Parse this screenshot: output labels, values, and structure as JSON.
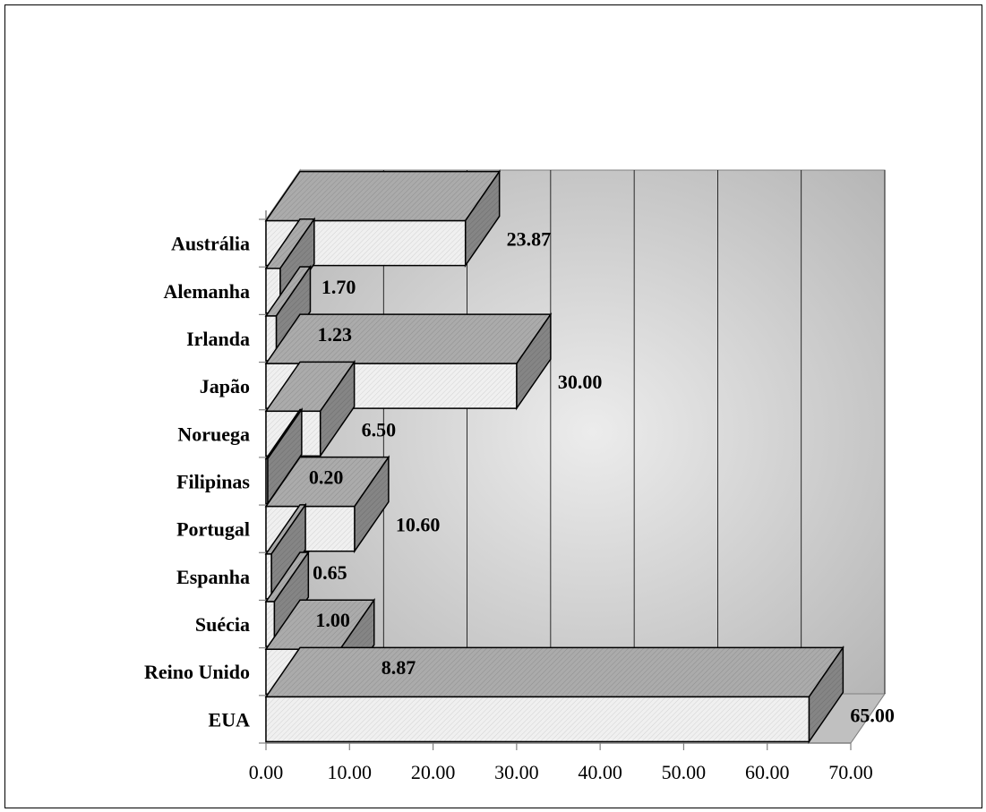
{
  "chart_data": {
    "type": "bar",
    "orientation": "horizontal",
    "style": "3d",
    "categories": [
      "EUA",
      "Reino Unido",
      "Suécia",
      "Espanha",
      "Portugal",
      "Filipinas",
      "Noruega",
      "Japão",
      "Irlanda",
      "Alemanha",
      "Austrália"
    ],
    "values": [
      65.0,
      8.87,
      1.0,
      0.65,
      10.6,
      0.2,
      6.5,
      30.0,
      1.23,
      1.7,
      23.87
    ],
    "data_labels": [
      "65.00",
      "8.87",
      "1.00",
      "0.65",
      "10.60",
      "0.20",
      "6.50",
      "30.00",
      "1.23",
      "1.70",
      "23.87"
    ],
    "xlim": [
      0,
      70
    ],
    "x_ticks": [
      "0.00",
      "10.00",
      "20.00",
      "30.00",
      "40.00",
      "50.00",
      "60.00",
      "70.00"
    ],
    "grid": true,
    "legend": false,
    "colors": {
      "bar_front": "#ececec",
      "bar_top": "#a6a6a6",
      "bar_side": "#808080",
      "wall_light": "#e6e6e6",
      "wall_dark": "#b4b4b4",
      "floor": "#c0c0c0"
    }
  }
}
